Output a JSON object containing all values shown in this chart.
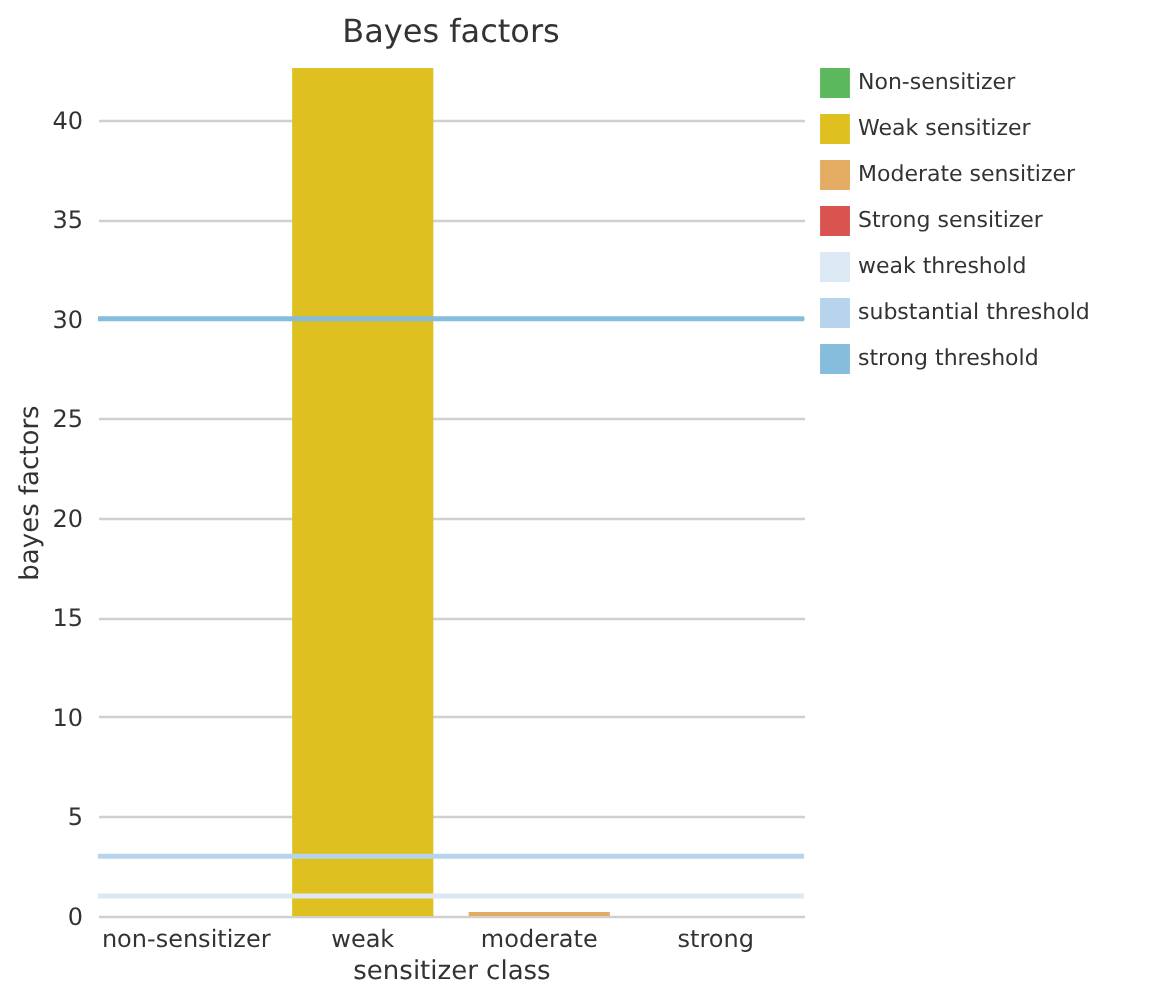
{
  "chart_data": {
    "type": "bar",
    "title": "Bayes factors",
    "xlabel": "sensitizer class",
    "ylabel": "bayes factors",
    "categories": [
      "non-sensitizer",
      "weak",
      "moderate",
      "strong"
    ],
    "series": [
      {
        "name": "Non-sensitizer",
        "color": "#5cb85c",
        "values": [
          0,
          null,
          null,
          null
        ]
      },
      {
        "name": "Weak sensitizer",
        "color": "#dfc021",
        "values": [
          null,
          42.6,
          null,
          null
        ]
      },
      {
        "name": "Moderate sensitizer",
        "color": "#e3ac62",
        "values": [
          null,
          null,
          0.2,
          null
        ]
      },
      {
        "name": "Strong sensitizer",
        "color": "#d9534f",
        "values": [
          null,
          null,
          null,
          0
        ]
      }
    ],
    "ref_lines": [
      {
        "axis": "y",
        "value": 1,
        "label": "weak threshold",
        "color": "#dde8f5"
      },
      {
        "axis": "y",
        "value": 3,
        "label": "substantial threshold",
        "color": "#b8d4ec"
      },
      {
        "axis": "y",
        "value": 30,
        "label": "strong threshold",
        "color": "#86bcdc"
      }
    ],
    "ylim": [
      0,
      42.6
    ],
    "yticks": [
      0,
      5,
      10,
      15,
      20,
      25,
      30,
      35,
      40
    ],
    "grid": "y",
    "legend": "right"
  }
}
